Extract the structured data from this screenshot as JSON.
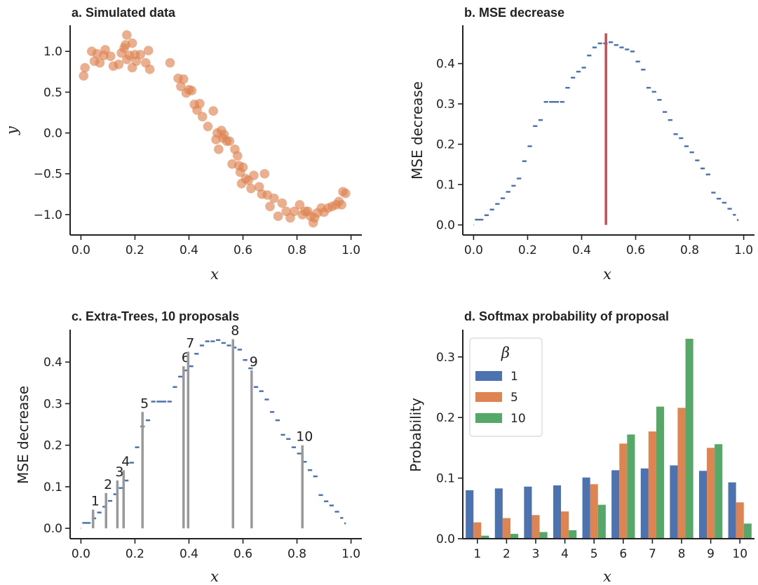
{
  "colors": {
    "blue": "#4c72b0",
    "orange": "#dd8452",
    "green": "#55a868",
    "red": "#c44e52",
    "gray": "#999999",
    "axis": "#222222"
  },
  "chart_data": [
    {
      "type": "scatter",
      "title": "a. Simulated data",
      "xlabel": "x",
      "ylabel": "y",
      "xlim": [
        -0.04,
        1.04
      ],
      "ylim": [
        -1.25,
        1.32
      ],
      "xticks": [
        0.0,
        0.2,
        0.4,
        0.6,
        0.8,
        1.0
      ],
      "xtick_labels": [
        "0.0",
        "0.2",
        "0.4",
        "0.6",
        "0.8",
        "1.0"
      ],
      "yticks": [
        -1.0,
        -0.5,
        0.0,
        0.5,
        1.0
      ],
      "ytick_labels": [
        "−1.0",
        "−0.5",
        "0.0",
        "0.5",
        "1.0"
      ],
      "grid": false,
      "points": [
        [
          0.01,
          0.7
        ],
        [
          0.015,
          0.8
        ],
        [
          0.04,
          1.0
        ],
        [
          0.05,
          0.88
        ],
        [
          0.06,
          0.97
        ],
        [
          0.07,
          0.86
        ],
        [
          0.085,
          0.95
        ],
        [
          0.09,
          1.02
        ],
        [
          0.11,
          0.94
        ],
        [
          0.12,
          0.82
        ],
        [
          0.14,
          0.84
        ],
        [
          0.15,
          0.98
        ],
        [
          0.16,
          1.04
        ],
        [
          0.17,
          0.9
        ],
        [
          0.18,
          0.95
        ],
        [
          0.17,
          1.2
        ],
        [
          0.19,
          1.1
        ],
        [
          0.2,
          0.96
        ],
        [
          0.22,
          0.96
        ],
        [
          0.24,
          0.86
        ],
        [
          0.25,
          1.01
        ],
        [
          0.19,
          0.8
        ],
        [
          0.205,
          0.88
        ],
        [
          0.255,
          0.78
        ],
        [
          0.165,
          1.08
        ],
        [
          0.33,
          0.86
        ],
        [
          0.36,
          0.67
        ],
        [
          0.37,
          0.57
        ],
        [
          0.38,
          0.66
        ],
        [
          0.39,
          0.49
        ],
        [
          0.4,
          0.53
        ],
        [
          0.41,
          0.52
        ],
        [
          0.42,
          0.35
        ],
        [
          0.43,
          0.28
        ],
        [
          0.44,
          0.36
        ],
        [
          0.45,
          0.2
        ],
        [
          0.47,
          0.08
        ],
        [
          0.49,
          0.27
        ],
        [
          0.5,
          -0.08
        ],
        [
          0.505,
          0.0
        ],
        [
          0.51,
          -0.2
        ],
        [
          0.52,
          0.03
        ],
        [
          0.525,
          -0.06
        ],
        [
          0.53,
          -0.02
        ],
        [
          0.54,
          -0.1
        ],
        [
          0.55,
          -0.1
        ],
        [
          0.56,
          -0.38
        ],
        [
          0.57,
          -0.2
        ],
        [
          0.58,
          -0.28
        ],
        [
          0.585,
          -0.4
        ],
        [
          0.59,
          -0.48
        ],
        [
          0.595,
          -0.62
        ],
        [
          0.6,
          -0.42
        ],
        [
          0.61,
          -0.56
        ],
        [
          0.62,
          -0.58
        ],
        [
          0.63,
          -0.68
        ],
        [
          0.64,
          -0.52
        ],
        [
          0.66,
          -0.66
        ],
        [
          0.67,
          -0.75
        ],
        [
          0.68,
          -0.5
        ],
        [
          0.69,
          -0.76
        ],
        [
          0.7,
          -0.9
        ],
        [
          0.715,
          -0.8
        ],
        [
          0.73,
          -1.02
        ],
        [
          0.745,
          -0.86
        ],
        [
          0.76,
          -0.96
        ],
        [
          0.775,
          -1.04
        ],
        [
          0.79,
          -0.96
        ],
        [
          0.81,
          -0.88
        ],
        [
          0.82,
          -1.0
        ],
        [
          0.83,
          -0.96
        ],
        [
          0.84,
          -0.96
        ],
        [
          0.85,
          -1.02
        ],
        [
          0.86,
          -1.1
        ],
        [
          0.865,
          -1.04
        ],
        [
          0.875,
          -0.98
        ],
        [
          0.89,
          -0.92
        ],
        [
          0.9,
          -0.97
        ],
        [
          0.915,
          -0.92
        ],
        [
          0.93,
          -0.9
        ],
        [
          0.945,
          -0.88
        ],
        [
          0.955,
          -0.84
        ],
        [
          0.965,
          -0.88
        ],
        [
          0.97,
          -0.72
        ],
        [
          0.98,
          -0.74
        ]
      ]
    },
    {
      "type": "line",
      "title": "b. MSE decrease",
      "xlabel": "x",
      "ylabel": "MSE decrease",
      "xlim": [
        -0.04,
        1.04
      ],
      "ylim": [
        -0.025,
        0.495
      ],
      "xticks": [
        0.0,
        0.2,
        0.4,
        0.6,
        0.8,
        1.0
      ],
      "xtick_labels": [
        "0.0",
        "0.2",
        "0.4",
        "0.6",
        "0.8",
        "1.0"
      ],
      "yticks": [
        0.0,
        0.1,
        0.2,
        0.3,
        0.4
      ],
      "ytick_labels": [
        "0.0",
        "0.1",
        "0.2",
        "0.3",
        "0.4"
      ],
      "grid": false,
      "best_split_x": 0.49,
      "best_split_y": 0.475,
      "curve": [
        [
          0.0,
          0.0
        ],
        [
          0.005,
          0.013
        ],
        [
          0.04,
          0.024
        ],
        [
          0.06,
          0.038
        ],
        [
          0.08,
          0.052
        ],
        [
          0.1,
          0.066
        ],
        [
          0.12,
          0.082
        ],
        [
          0.14,
          0.097
        ],
        [
          0.16,
          0.115
        ],
        [
          0.18,
          0.158
        ],
        [
          0.2,
          0.195
        ],
        [
          0.22,
          0.245
        ],
        [
          0.24,
          0.26
        ],
        [
          0.26,
          0.305
        ],
        [
          0.28,
          0.305
        ],
        [
          0.32,
          0.305
        ],
        [
          0.34,
          0.34
        ],
        [
          0.36,
          0.365
        ],
        [
          0.38,
          0.38
        ],
        [
          0.4,
          0.39
        ],
        [
          0.42,
          0.42
        ],
        [
          0.44,
          0.44
        ],
        [
          0.46,
          0.45
        ],
        [
          0.48,
          0.45
        ],
        [
          0.5,
          0.453
        ],
        [
          0.52,
          0.446
        ],
        [
          0.54,
          0.44
        ],
        [
          0.56,
          0.435
        ],
        [
          0.58,
          0.43
        ],
        [
          0.6,
          0.405
        ],
        [
          0.62,
          0.385
        ],
        [
          0.64,
          0.34
        ],
        [
          0.66,
          0.33
        ],
        [
          0.68,
          0.31
        ],
        [
          0.7,
          0.28
        ],
        [
          0.72,
          0.26
        ],
        [
          0.74,
          0.225
        ],
        [
          0.76,
          0.215
        ],
        [
          0.78,
          0.195
        ],
        [
          0.8,
          0.18
        ],
        [
          0.82,
          0.16
        ],
        [
          0.84,
          0.14
        ],
        [
          0.86,
          0.125
        ],
        [
          0.88,
          0.08
        ],
        [
          0.9,
          0.065
        ],
        [
          0.92,
          0.055
        ],
        [
          0.94,
          0.04
        ],
        [
          0.96,
          0.025
        ],
        [
          0.975,
          0.012
        ],
        [
          0.985,
          0.003
        ]
      ]
    },
    {
      "type": "line",
      "title": "c. Extra-Trees, 10 proposals",
      "xlabel": "x",
      "ylabel": "MSE decrease",
      "xlim": [
        -0.04,
        1.04
      ],
      "ylim": [
        -0.025,
        0.478
      ],
      "xticks": [
        0.0,
        0.2,
        0.4,
        0.6,
        0.8,
        1.0
      ],
      "xtick_labels": [
        "0.0",
        "0.2",
        "0.4",
        "0.6",
        "0.8",
        "1.0"
      ],
      "yticks": [
        0.0,
        0.1,
        0.2,
        0.3,
        0.4
      ],
      "ytick_labels": [
        "0.0",
        "0.1",
        "0.2",
        "0.3",
        "0.4"
      ],
      "grid": false,
      "proposals": [
        {
          "label": "1",
          "x": 0.045,
          "y": 0.045
        },
        {
          "label": "2",
          "x": 0.093,
          "y": 0.085
        },
        {
          "label": "3",
          "x": 0.135,
          "y": 0.115
        },
        {
          "label": "4",
          "x": 0.158,
          "y": 0.14
        },
        {
          "label": "5",
          "x": 0.228,
          "y": 0.28
        },
        {
          "label": "6",
          "x": 0.38,
          "y": 0.39
        },
        {
          "label": "7",
          "x": 0.397,
          "y": 0.425
        },
        {
          "label": "8",
          "x": 0.563,
          "y": 0.455
        },
        {
          "label": "9",
          "x": 0.632,
          "y": 0.38
        },
        {
          "label": "10",
          "x": 0.82,
          "y": 0.2
        }
      ]
    },
    {
      "type": "bar",
      "title": "d. Softmax probability of proposal",
      "xlabel": "x",
      "ylabel": "Probability",
      "ylim": [
        0,
        0.345
      ],
      "yticks": [
        0.0,
        0.1,
        0.2,
        0.3
      ],
      "ytick_labels": [
        "0.0",
        "0.1",
        "0.2",
        "0.3"
      ],
      "categories": [
        "1",
        "2",
        "3",
        "4",
        "5",
        "6",
        "7",
        "8",
        "9",
        "10"
      ],
      "legend_title": "β",
      "legend_placement": "top-left",
      "grid": false,
      "series": [
        {
          "name": "1",
          "color": "#4c72b0",
          "values": [
            0.08,
            0.083,
            0.086,
            0.088,
            0.101,
            0.113,
            0.116,
            0.121,
            0.112,
            0.093
          ]
        },
        {
          "name": "5",
          "color": "#dd8452",
          "values": [
            0.027,
            0.034,
            0.039,
            0.045,
            0.09,
            0.157,
            0.177,
            0.216,
            0.15,
            0.06
          ]
        },
        {
          "name": "10",
          "color": "#55a868",
          "values": [
            0.005,
            0.008,
            0.011,
            0.014,
            0.056,
            0.172,
            0.218,
            0.33,
            0.156,
            0.025
          ]
        }
      ]
    }
  ]
}
